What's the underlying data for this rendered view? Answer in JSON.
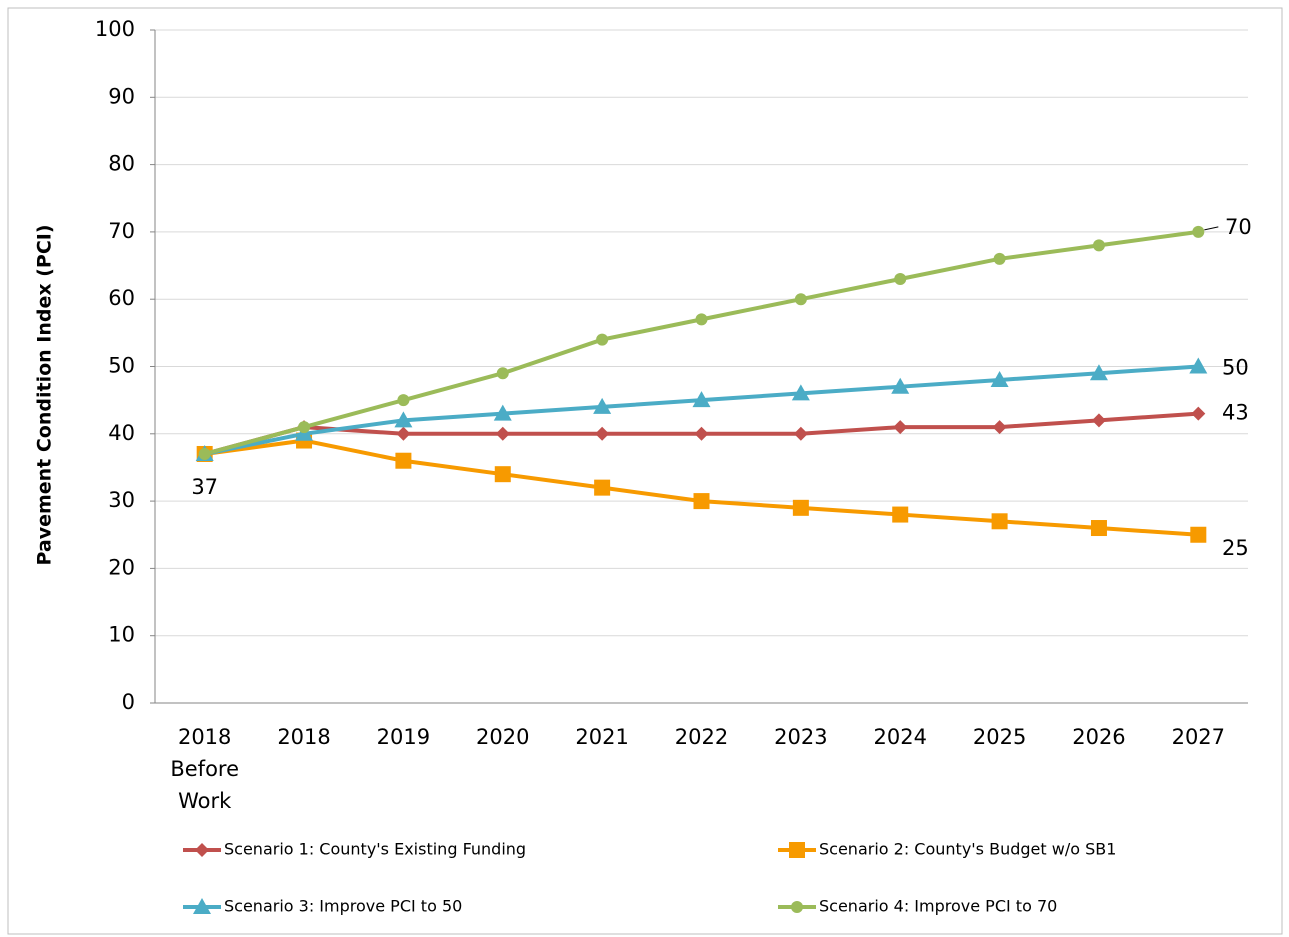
{
  "chart_data": {
    "type": "line",
    "y_label": "Pavement Condition Index (PCI)",
    "categories": [
      "2018 Before Work",
      "2018",
      "2019",
      "2020",
      "2021",
      "2022",
      "2023",
      "2024",
      "2025",
      "2026",
      "2027"
    ],
    "series": [
      {
        "name": "Scenario 1: County's Existing Funding",
        "color": "#c0504d",
        "marker": "diamond",
        "values": [
          37,
          41,
          40,
          40,
          40,
          40,
          40,
          41,
          41,
          42,
          43
        ]
      },
      {
        "name": "Scenario 2: County's Budget w/o SB1",
        "color": "#f79a00",
        "marker": "square",
        "values": [
          37,
          39,
          36,
          34,
          32,
          30,
          29,
          28,
          27,
          26,
          25
        ]
      },
      {
        "name": "Scenario 3: Improve PCI to 50",
        "color": "#4bacc6",
        "marker": "triangle",
        "values": [
          37,
          40,
          42,
          43,
          44,
          45,
          46,
          47,
          48,
          49,
          50
        ]
      },
      {
        "name": "Scenario 4: Improve PCI to 70",
        "color": "#9bbb59",
        "marker": "circle",
        "values": [
          37,
          41,
          45,
          49,
          54,
          57,
          60,
          63,
          66,
          68,
          70
        ]
      }
    ],
    "ylim": [
      0,
      100
    ],
    "yticks": [
      0,
      10,
      20,
      30,
      40,
      50,
      60,
      70,
      80,
      90,
      100
    ],
    "grid": true
  }
}
